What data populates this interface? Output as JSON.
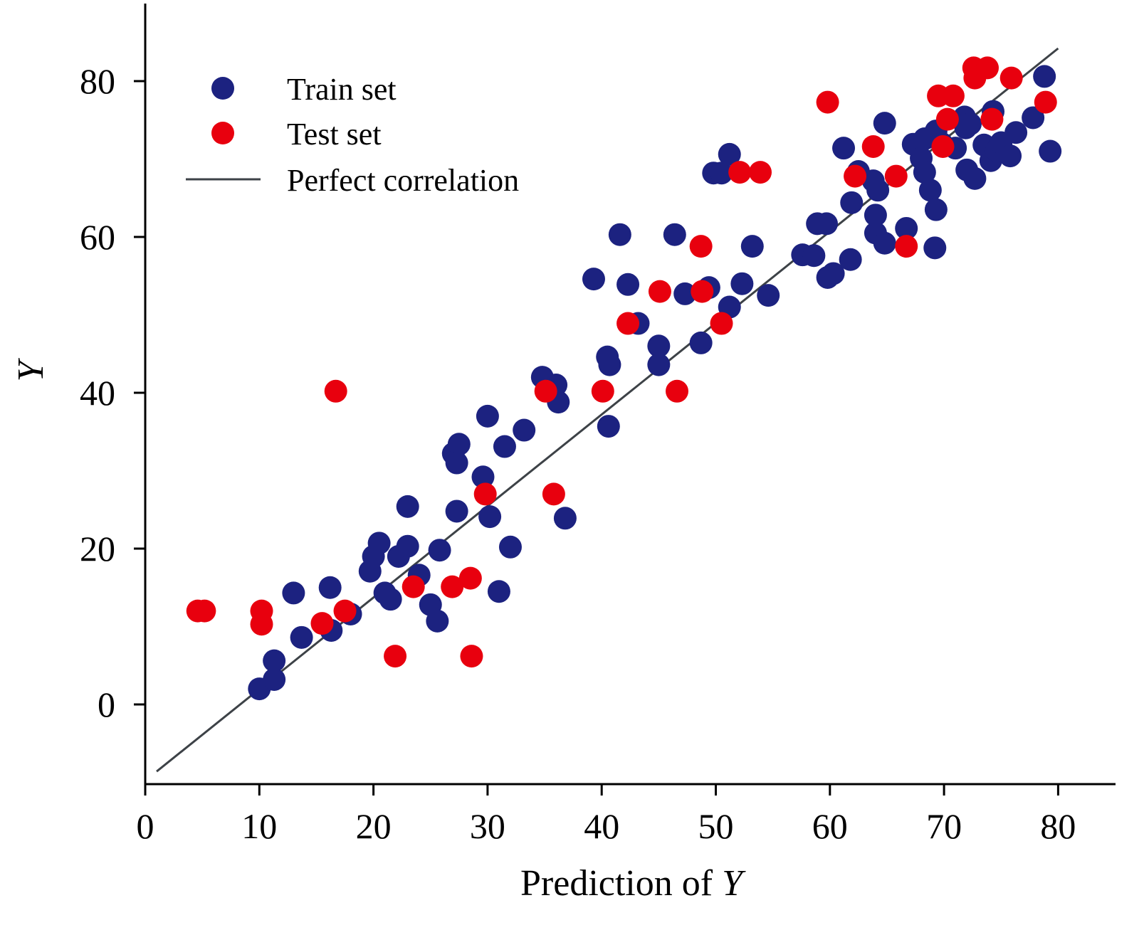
{
  "chart_data": {
    "type": "scatter",
    "xlabel": {
      "main": "Prediction of ",
      "var": "Y"
    },
    "ylabel": "Y",
    "xlim": [
      0,
      85
    ],
    "ylim": [
      -10,
      90
    ],
    "x_ticks": [
      0,
      10,
      20,
      30,
      40,
      50,
      60,
      70,
      80
    ],
    "y_ticks": [
      0,
      20,
      40,
      60,
      80
    ],
    "x_tick_labels": [
      "0",
      "10",
      "20",
      "30",
      "40",
      "50",
      "60",
      "70",
      "80"
    ],
    "y_tick_labels": [
      "0",
      "20",
      "40",
      "60",
      "80"
    ],
    "grid": false,
    "legend_position": "top-left",
    "series": [
      {
        "name": "Train set",
        "color": "#1c2280",
        "marker": "circle",
        "points": [
          [
            10.0,
            2.0
          ],
          [
            11.3,
            3.2
          ],
          [
            11.3,
            5.6
          ],
          [
            13.0,
            14.3
          ],
          [
            13.7,
            8.6
          ],
          [
            16.2,
            15.0
          ],
          [
            16.3,
            9.5
          ],
          [
            18.0,
            11.6
          ],
          [
            19.7,
            17.1
          ],
          [
            20.0,
            19.0
          ],
          [
            20.5,
            20.7
          ],
          [
            21.0,
            14.3
          ],
          [
            21.5,
            13.5
          ],
          [
            22.2,
            19.0
          ],
          [
            23.0,
            20.3
          ],
          [
            23.0,
            25.4
          ],
          [
            24.0,
            16.6
          ],
          [
            25.0,
            12.8
          ],
          [
            25.6,
            10.7
          ],
          [
            25.8,
            19.8
          ],
          [
            27.0,
            32.2
          ],
          [
            27.5,
            33.4
          ],
          [
            27.3,
            31.0
          ],
          [
            27.3,
            24.8
          ],
          [
            29.6,
            29.2
          ],
          [
            30.0,
            37.0
          ],
          [
            30.2,
            24.1
          ],
          [
            31.0,
            14.5
          ],
          [
            31.5,
            33.1
          ],
          [
            32.0,
            20.2
          ],
          [
            33.2,
            35.2
          ],
          [
            34.8,
            42.0
          ],
          [
            36.0,
            41.0
          ],
          [
            36.2,
            38.8
          ],
          [
            36.8,
            23.9
          ],
          [
            39.3,
            54.6
          ],
          [
            40.5,
            44.6
          ],
          [
            40.7,
            43.6
          ],
          [
            40.6,
            35.7
          ],
          [
            41.6,
            60.3
          ],
          [
            42.3,
            53.9
          ],
          [
            43.2,
            48.9
          ],
          [
            45.0,
            46.0
          ],
          [
            45.0,
            43.6
          ],
          [
            46.4,
            60.3
          ],
          [
            47.3,
            52.7
          ],
          [
            48.7,
            46.4
          ],
          [
            49.4,
            53.5
          ],
          [
            49.8,
            68.2
          ],
          [
            50.5,
            68.2
          ],
          [
            51.2,
            70.6
          ],
          [
            51.2,
            51.0
          ],
          [
            52.3,
            54.0
          ],
          [
            53.2,
            58.8
          ],
          [
            54.6,
            52.5
          ],
          [
            57.6,
            57.7
          ],
          [
            58.6,
            57.6
          ],
          [
            58.9,
            61.7
          ],
          [
            59.7,
            61.7
          ],
          [
            59.8,
            54.8
          ],
          [
            60.3,
            55.3
          ],
          [
            61.2,
            71.4
          ],
          [
            61.8,
            57.1
          ],
          [
            61.9,
            64.4
          ],
          [
            62.5,
            68.4
          ],
          [
            63.8,
            67.2
          ],
          [
            64.0,
            62.8
          ],
          [
            64.0,
            60.5
          ],
          [
            64.2,
            66.0
          ],
          [
            64.8,
            59.2
          ],
          [
            64.8,
            74.6
          ],
          [
            66.7,
            61.1
          ],
          [
            67.3,
            71.9
          ],
          [
            68.0,
            70.1
          ],
          [
            68.3,
            72.6
          ],
          [
            68.3,
            68.3
          ],
          [
            68.8,
            66.0
          ],
          [
            69.3,
            63.5
          ],
          [
            69.2,
            58.6
          ],
          [
            69.3,
            73.6
          ],
          [
            69.8,
            72.0
          ],
          [
            71.0,
            71.4
          ],
          [
            71.9,
            74.0
          ],
          [
            71.8,
            75.4
          ],
          [
            72.3,
            74.5
          ],
          [
            72.0,
            68.6
          ],
          [
            72.7,
            67.5
          ],
          [
            73.5,
            71.8
          ],
          [
            74.1,
            69.8
          ],
          [
            74.3,
            76.1
          ],
          [
            74.6,
            71.1
          ],
          [
            75.0,
            72.1
          ],
          [
            75.8,
            70.4
          ],
          [
            76.3,
            73.4
          ],
          [
            77.8,
            75.3
          ],
          [
            78.8,
            80.6
          ],
          [
            79.3,
            71.0
          ]
        ]
      },
      {
        "name": "Test set",
        "color": "#e8000e",
        "marker": "circle",
        "points": [
          [
            4.6,
            12.0
          ],
          [
            5.2,
            12.0
          ],
          [
            10.2,
            12.0
          ],
          [
            10.2,
            10.3
          ],
          [
            15.5,
            10.4
          ],
          [
            16.7,
            40.2
          ],
          [
            17.5,
            12.0
          ],
          [
            21.9,
            6.2
          ],
          [
            23.5,
            15.1
          ],
          [
            26.9,
            15.1
          ],
          [
            28.5,
            16.2
          ],
          [
            28.6,
            6.2
          ],
          [
            29.8,
            27.0
          ],
          [
            35.1,
            40.2
          ],
          [
            35.8,
            27.0
          ],
          [
            40.1,
            40.2
          ],
          [
            42.3,
            48.9
          ],
          [
            45.1,
            53.0
          ],
          [
            46.6,
            40.2
          ],
          [
            48.7,
            58.8
          ],
          [
            48.8,
            53.0
          ],
          [
            50.5,
            48.9
          ],
          [
            52.1,
            68.3
          ],
          [
            53.9,
            68.3
          ],
          [
            59.8,
            77.3
          ],
          [
            62.2,
            67.8
          ],
          [
            63.8,
            71.6
          ],
          [
            65.8,
            67.8
          ],
          [
            66.7,
            58.8
          ],
          [
            69.5,
            78.1
          ],
          [
            69.9,
            71.6
          ],
          [
            70.3,
            75.1
          ],
          [
            70.8,
            78.1
          ],
          [
            72.6,
            81.7
          ],
          [
            72.7,
            80.4
          ],
          [
            73.8,
            81.7
          ],
          [
            74.2,
            75.1
          ],
          [
            75.9,
            80.4
          ],
          [
            78.9,
            77.3
          ]
        ]
      }
    ],
    "reference_line": {
      "name": "Perfect correlation",
      "color": "#3d4247",
      "x": [
        1,
        80
      ],
      "y": [
        -8.6,
        84.2
      ]
    }
  }
}
